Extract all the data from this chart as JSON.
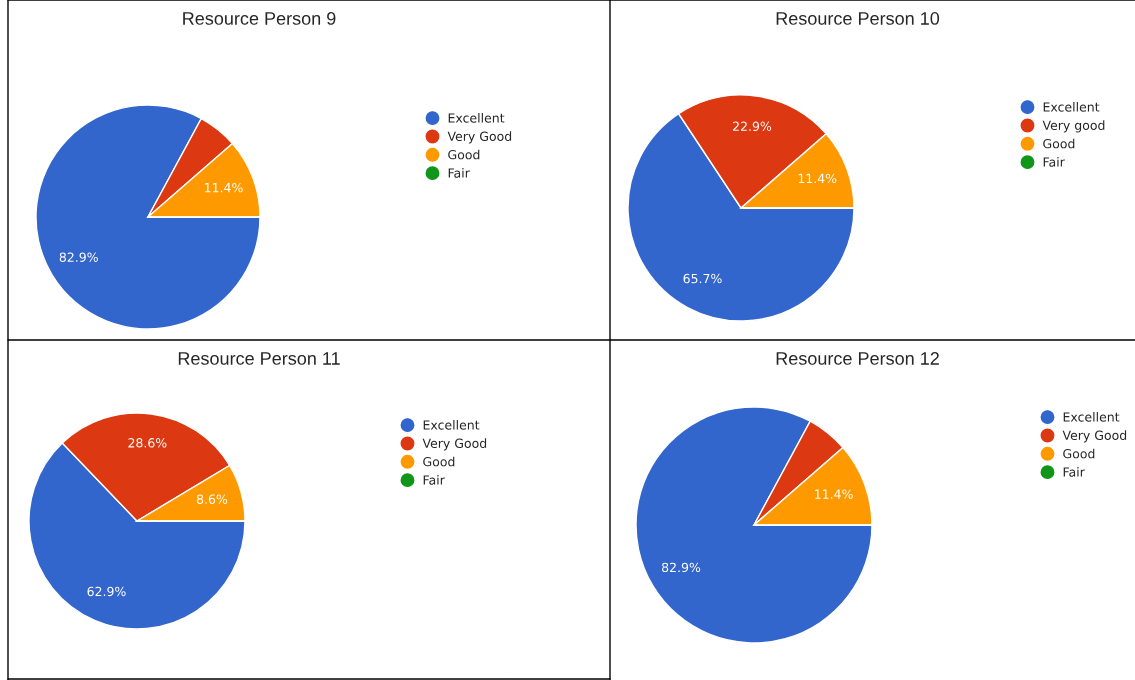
{
  "chart_data": [
    {
      "type": "pie",
      "title": "Resource Person 9",
      "categories": [
        "Excellent",
        "Very Good",
        "Good",
        "Fair"
      ],
      "values": [
        82.9,
        5.7,
        11.4,
        0
      ],
      "colors": [
        "#3366cc",
        "#dc3912",
        "#ff9900",
        "#109618"
      ],
      "value_labels": [
        "82.9%",
        null,
        "11.4%",
        null
      ],
      "legend": "right"
    },
    {
      "type": "pie",
      "title": "Resource Person 10",
      "categories": [
        "Excellent",
        "Very good",
        "Good",
        "Fair"
      ],
      "values": [
        65.7,
        22.9,
        11.4,
        0
      ],
      "colors": [
        "#3366cc",
        "#dc3912",
        "#ff9900",
        "#109618"
      ],
      "value_labels": [
        "65.7%",
        "22.9%",
        "11.4%",
        null
      ],
      "legend": "right"
    },
    {
      "type": "pie",
      "title": "Resource Person 11",
      "categories": [
        "Excellent",
        "Very Good",
        "Good",
        "Fair"
      ],
      "values": [
        62.9,
        28.6,
        8.6,
        0
      ],
      "colors": [
        "#3366cc",
        "#dc3912",
        "#ff9900",
        "#109618"
      ],
      "value_labels": [
        "62.9%",
        "28.6%",
        "8.6%",
        null
      ],
      "legend": "right"
    },
    {
      "type": "pie",
      "title": "Resource Person 12",
      "categories": [
        "Excellent",
        "Very Good",
        "Good",
        "Fair"
      ],
      "values": [
        82.9,
        5.7,
        11.4,
        0
      ],
      "colors": [
        "#3366cc",
        "#dc3912",
        "#ff9900",
        "#109618"
      ],
      "value_labels": [
        "82.9%",
        null,
        "11.4%",
        null
      ],
      "legend": "right"
    }
  ]
}
